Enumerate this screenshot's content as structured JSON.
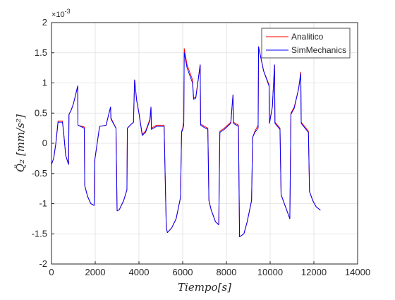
{
  "chart_data": {
    "type": "line",
    "title": "",
    "xlabel": "Tiempo[s]",
    "ylabel": "Q̈₂ [mm/s²]",
    "y_exponent_base": "×10",
    "y_exponent_power": "-3",
    "xlim": [
      0,
      14000
    ],
    "ylim": [
      -2,
      2
    ],
    "grid": true,
    "legend_position": "top-right",
    "x_ticks": [
      0,
      2000,
      4000,
      6000,
      8000,
      10000,
      12000,
      14000
    ],
    "x_tick_labels": [
      "0",
      "2000",
      "4000",
      "6000",
      "8000",
      "10000",
      "12000",
      "14000"
    ],
    "y_ticks": [
      -2,
      -1.5,
      -1,
      -0.5,
      0,
      0.5,
      1,
      1.5,
      2
    ],
    "y_tick_labels": [
      "-2",
      "-1.5",
      "-1",
      "-0.5",
      "0",
      "0.5",
      "1",
      "1.5",
      "2"
    ],
    "series": [
      {
        "name": "Analitico",
        "color": "#ff0000",
        "points": [
          [
            0,
            -0.35
          ],
          [
            100,
            -0.25
          ],
          [
            200,
            0
          ],
          [
            300,
            0.37
          ],
          [
            500,
            0.37
          ],
          [
            550,
            0.2
          ],
          [
            650,
            -0.2
          ],
          [
            780,
            -0.35
          ],
          [
            800,
            0.48
          ],
          [
            900,
            0.55
          ],
          [
            1000,
            0.65
          ],
          [
            1100,
            0.8
          ],
          [
            1200,
            0.95
          ],
          [
            1210,
            0.3
          ],
          [
            1500,
            0.27
          ],
          [
            1520,
            -0.7
          ],
          [
            1650,
            -0.88
          ],
          [
            1800,
            -1.0
          ],
          [
            1950,
            -1.03
          ],
          [
            1970,
            -0.3
          ],
          [
            2200,
            0.28
          ],
          [
            2500,
            0.3
          ],
          [
            2550,
            0.38
          ],
          [
            2700,
            0.6
          ],
          [
            2720,
            0.42
          ],
          [
            2950,
            0.25
          ],
          [
            3000,
            -1.12
          ],
          [
            3100,
            -1.1
          ],
          [
            3300,
            -0.95
          ],
          [
            3450,
            -0.77
          ],
          [
            3470,
            0.25
          ],
          [
            3600,
            0.3
          ],
          [
            3750,
            0.35
          ],
          [
            3800,
            1.05
          ],
          [
            3900,
            0.7
          ],
          [
            4000,
            0.5
          ],
          [
            4150,
            0.15
          ],
          [
            4300,
            0.2
          ],
          [
            4500,
            0.4
          ],
          [
            4550,
            0.6
          ],
          [
            4570,
            0.25
          ],
          [
            4800,
            0.3
          ],
          [
            5150,
            0.3
          ],
          [
            5250,
            -1.4
          ],
          [
            5300,
            -1.48
          ],
          [
            5500,
            -1.4
          ],
          [
            5700,
            -1.25
          ],
          [
            5900,
            -0.9
          ],
          [
            5950,
            0.2
          ],
          [
            6000,
            0.25
          ],
          [
            6050,
            0.35
          ],
          [
            6070,
            1.57
          ],
          [
            6200,
            1.3
          ],
          [
            6450,
            1.05
          ],
          [
            6500,
            0.75
          ],
          [
            6600,
            0.77
          ],
          [
            6800,
            1.3
          ],
          [
            6820,
            0.32
          ],
          [
            7000,
            0.28
          ],
          [
            7150,
            0.25
          ],
          [
            7200,
            -0.95
          ],
          [
            7300,
            -1.1
          ],
          [
            7500,
            -1.3
          ],
          [
            7650,
            -1.35
          ],
          [
            7700,
            0.2
          ],
          [
            7900,
            0.25
          ],
          [
            8200,
            0.35
          ],
          [
            8300,
            0.8
          ],
          [
            8320,
            0.35
          ],
          [
            8550,
            0.3
          ],
          [
            8600,
            -1.55
          ],
          [
            8800,
            -1.5
          ],
          [
            8950,
            -1.3
          ],
          [
            9150,
            -0.95
          ],
          [
            9200,
            0.1
          ],
          [
            9300,
            0.2
          ],
          [
            9450,
            0.3
          ],
          [
            9470,
            1.6
          ],
          [
            9700,
            1.2
          ],
          [
            9950,
            0.97
          ],
          [
            9970,
            0.35
          ],
          [
            10100,
            0.6
          ],
          [
            10200,
            1.3
          ],
          [
            10220,
            0.35
          ],
          [
            10450,
            0.25
          ],
          [
            10500,
            -0.85
          ],
          [
            10700,
            -1.05
          ],
          [
            10900,
            -1.25
          ],
          [
            10950,
            0.5
          ],
          [
            11100,
            0.6
          ],
          [
            11300,
            0.9
          ],
          [
            11400,
            1.18
          ],
          [
            11420,
            0.35
          ],
          [
            11750,
            0.2
          ],
          [
            11800,
            -0.8
          ],
          [
            11950,
            -0.95
          ],
          [
            12100,
            -1.05
          ],
          [
            12300,
            -1.11
          ]
        ]
      },
      {
        "name": "SimMechanics",
        "color": "#0000ff",
        "points": [
          [
            0,
            -0.35
          ],
          [
            100,
            -0.25
          ],
          [
            200,
            0
          ],
          [
            300,
            0.35
          ],
          [
            500,
            0.35
          ],
          [
            550,
            0.2
          ],
          [
            650,
            -0.2
          ],
          [
            780,
            -0.35
          ],
          [
            800,
            0.48
          ],
          [
            900,
            0.55
          ],
          [
            1000,
            0.65
          ],
          [
            1100,
            0.8
          ],
          [
            1200,
            0.95
          ],
          [
            1210,
            0.3
          ],
          [
            1500,
            0.25
          ],
          [
            1520,
            -0.7
          ],
          [
            1650,
            -0.88
          ],
          [
            1800,
            -1.0
          ],
          [
            1950,
            -1.03
          ],
          [
            1970,
            -0.3
          ],
          [
            2200,
            0.28
          ],
          [
            2500,
            0.3
          ],
          [
            2550,
            0.38
          ],
          [
            2700,
            0.6
          ],
          [
            2720,
            0.4
          ],
          [
            2950,
            0.25
          ],
          [
            3000,
            -1.12
          ],
          [
            3100,
            -1.1
          ],
          [
            3300,
            -0.95
          ],
          [
            3450,
            -0.77
          ],
          [
            3470,
            0.25
          ],
          [
            3600,
            0.3
          ],
          [
            3750,
            0.35
          ],
          [
            3800,
            1.05
          ],
          [
            3900,
            0.7
          ],
          [
            4000,
            0.5
          ],
          [
            4150,
            0.13
          ],
          [
            4300,
            0.18
          ],
          [
            4500,
            0.38
          ],
          [
            4550,
            0.6
          ],
          [
            4570,
            0.23
          ],
          [
            4800,
            0.28
          ],
          [
            5150,
            0.28
          ],
          [
            5250,
            -1.4
          ],
          [
            5300,
            -1.48
          ],
          [
            5500,
            -1.4
          ],
          [
            5700,
            -1.25
          ],
          [
            5900,
            -0.9
          ],
          [
            5950,
            0.18
          ],
          [
            6000,
            0.23
          ],
          [
            6050,
            0.3
          ],
          [
            6070,
            1.5
          ],
          [
            6200,
            1.25
          ],
          [
            6450,
            1.0
          ],
          [
            6500,
            0.73
          ],
          [
            6600,
            0.75
          ],
          [
            6800,
            1.3
          ],
          [
            6820,
            0.3
          ],
          [
            7000,
            0.26
          ],
          [
            7150,
            0.23
          ],
          [
            7200,
            -0.95
          ],
          [
            7300,
            -1.1
          ],
          [
            7500,
            -1.3
          ],
          [
            7650,
            -1.35
          ],
          [
            7700,
            0.18
          ],
          [
            7900,
            0.23
          ],
          [
            8200,
            0.33
          ],
          [
            8300,
            0.8
          ],
          [
            8320,
            0.33
          ],
          [
            8550,
            0.28
          ],
          [
            8600,
            -1.55
          ],
          [
            8800,
            -1.5
          ],
          [
            8950,
            -1.3
          ],
          [
            9150,
            -0.95
          ],
          [
            9200,
            0.1
          ],
          [
            9300,
            0.18
          ],
          [
            9450,
            0.25
          ],
          [
            9470,
            1.6
          ],
          [
            9700,
            1.2
          ],
          [
            9950,
            0.95
          ],
          [
            9970,
            0.33
          ],
          [
            10100,
            0.6
          ],
          [
            10200,
            1.3
          ],
          [
            10220,
            0.33
          ],
          [
            10450,
            0.23
          ],
          [
            10500,
            -0.85
          ],
          [
            10700,
            -1.05
          ],
          [
            10900,
            -1.25
          ],
          [
            10950,
            0.48
          ],
          [
            11100,
            0.58
          ],
          [
            11300,
            0.9
          ],
          [
            11400,
            1.15
          ],
          [
            11420,
            0.33
          ],
          [
            11750,
            0.18
          ],
          [
            11800,
            -0.8
          ],
          [
            11950,
            -0.95
          ],
          [
            12100,
            -1.05
          ],
          [
            12300,
            -1.11
          ]
        ]
      }
    ]
  }
}
